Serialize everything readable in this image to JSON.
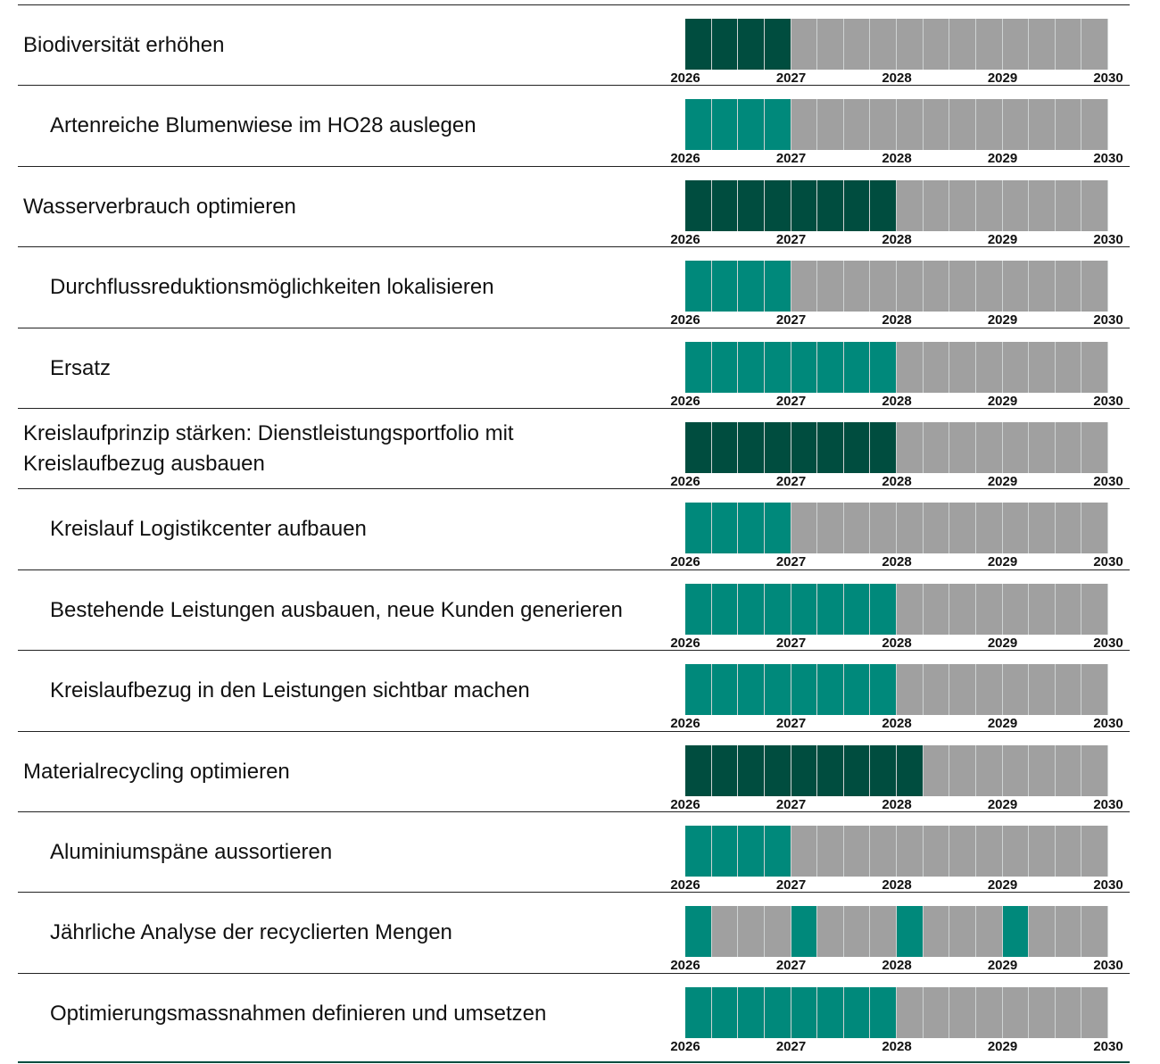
{
  "years": [
    "2026",
    "2027",
    "2028",
    "2029",
    "2030"
  ],
  "palette": {
    "empty": "#a0a0a0"
  },
  "rows": [
    {
      "label": "Biodiversität erhöhen",
      "level": 0,
      "color": "#004d3f",
      "quarters": [
        1,
        1,
        1,
        1,
        0,
        0,
        0,
        0,
        0,
        0,
        0,
        0,
        0,
        0,
        0,
        0
      ]
    },
    {
      "label": "Artenreiche Blumenwiese im HO28 auslegen",
      "level": 1,
      "color": "#00897b",
      "quarters": [
        1,
        1,
        1,
        1,
        0,
        0,
        0,
        0,
        0,
        0,
        0,
        0,
        0,
        0,
        0,
        0
      ]
    },
    {
      "label": "Wasserverbrauch optimieren",
      "level": 0,
      "color": "#004d3f",
      "quarters": [
        1,
        1,
        1,
        1,
        1,
        1,
        1,
        1,
        0,
        0,
        0,
        0,
        0,
        0,
        0,
        0
      ]
    },
    {
      "label": "Durchflussreduktionsmöglichkeiten lokalisieren",
      "level": 1,
      "color": "#00897b",
      "quarters": [
        1,
        1,
        1,
        1,
        0,
        0,
        0,
        0,
        0,
        0,
        0,
        0,
        0,
        0,
        0,
        0
      ]
    },
    {
      "label": "Ersatz",
      "level": 1,
      "color": "#00897b",
      "quarters": [
        1,
        1,
        1,
        1,
        1,
        1,
        1,
        1,
        0,
        0,
        0,
        0,
        0,
        0,
        0,
        0
      ]
    },
    {
      "label": "Kreislaufprinzip stärken: Dienstleistungsportfolio mit Kreislaufbezug ausbauen",
      "level": 0,
      "color": "#004d3f",
      "quarters": [
        1,
        1,
        1,
        1,
        1,
        1,
        1,
        1,
        0,
        0,
        0,
        0,
        0,
        0,
        0,
        0
      ]
    },
    {
      "label": "Kreislauf Logistikcenter aufbauen",
      "level": 1,
      "color": "#00897b",
      "quarters": [
        1,
        1,
        1,
        1,
        0,
        0,
        0,
        0,
        0,
        0,
        0,
        0,
        0,
        0,
        0,
        0
      ]
    },
    {
      "label": "Bestehende Leistungen ausbauen, neue Kunden generieren",
      "level": 1,
      "color": "#00897b",
      "quarters": [
        1,
        1,
        1,
        1,
        1,
        1,
        1,
        1,
        0,
        0,
        0,
        0,
        0,
        0,
        0,
        0
      ]
    },
    {
      "label": "Kreislaufbezug in den Leistungen sichtbar machen",
      "level": 1,
      "color": "#00897b",
      "quarters": [
        1,
        1,
        1,
        1,
        1,
        1,
        1,
        1,
        0,
        0,
        0,
        0,
        0,
        0,
        0,
        0
      ]
    },
    {
      "label": "Materialrecycling optimieren",
      "level": 0,
      "color": "#004d3f",
      "quarters": [
        1,
        1,
        1,
        1,
        1,
        1,
        1,
        1,
        1,
        0,
        0,
        0,
        0,
        0,
        0,
        0
      ]
    },
    {
      "label": "Aluminiumspäne aussortieren",
      "level": 1,
      "color": "#00897b",
      "quarters": [
        1,
        1,
        1,
        1,
        0,
        0,
        0,
        0,
        0,
        0,
        0,
        0,
        0,
        0,
        0,
        0
      ]
    },
    {
      "label": "Jährliche Analyse der recyclierten Mengen",
      "level": 1,
      "color": "#00897b",
      "quarters": [
        1,
        0,
        0,
        0,
        1,
        0,
        0,
        0,
        1,
        0,
        0,
        0,
        1,
        0,
        0,
        0
      ]
    },
    {
      "label": "Optimierungsmassnahmen definieren und umsetzen",
      "level": 1,
      "color": "#00897b",
      "quarters": [
        1,
        1,
        1,
        1,
        1,
        1,
        1,
        1,
        0,
        0,
        0,
        0,
        0,
        0,
        0,
        0
      ]
    }
  ]
}
